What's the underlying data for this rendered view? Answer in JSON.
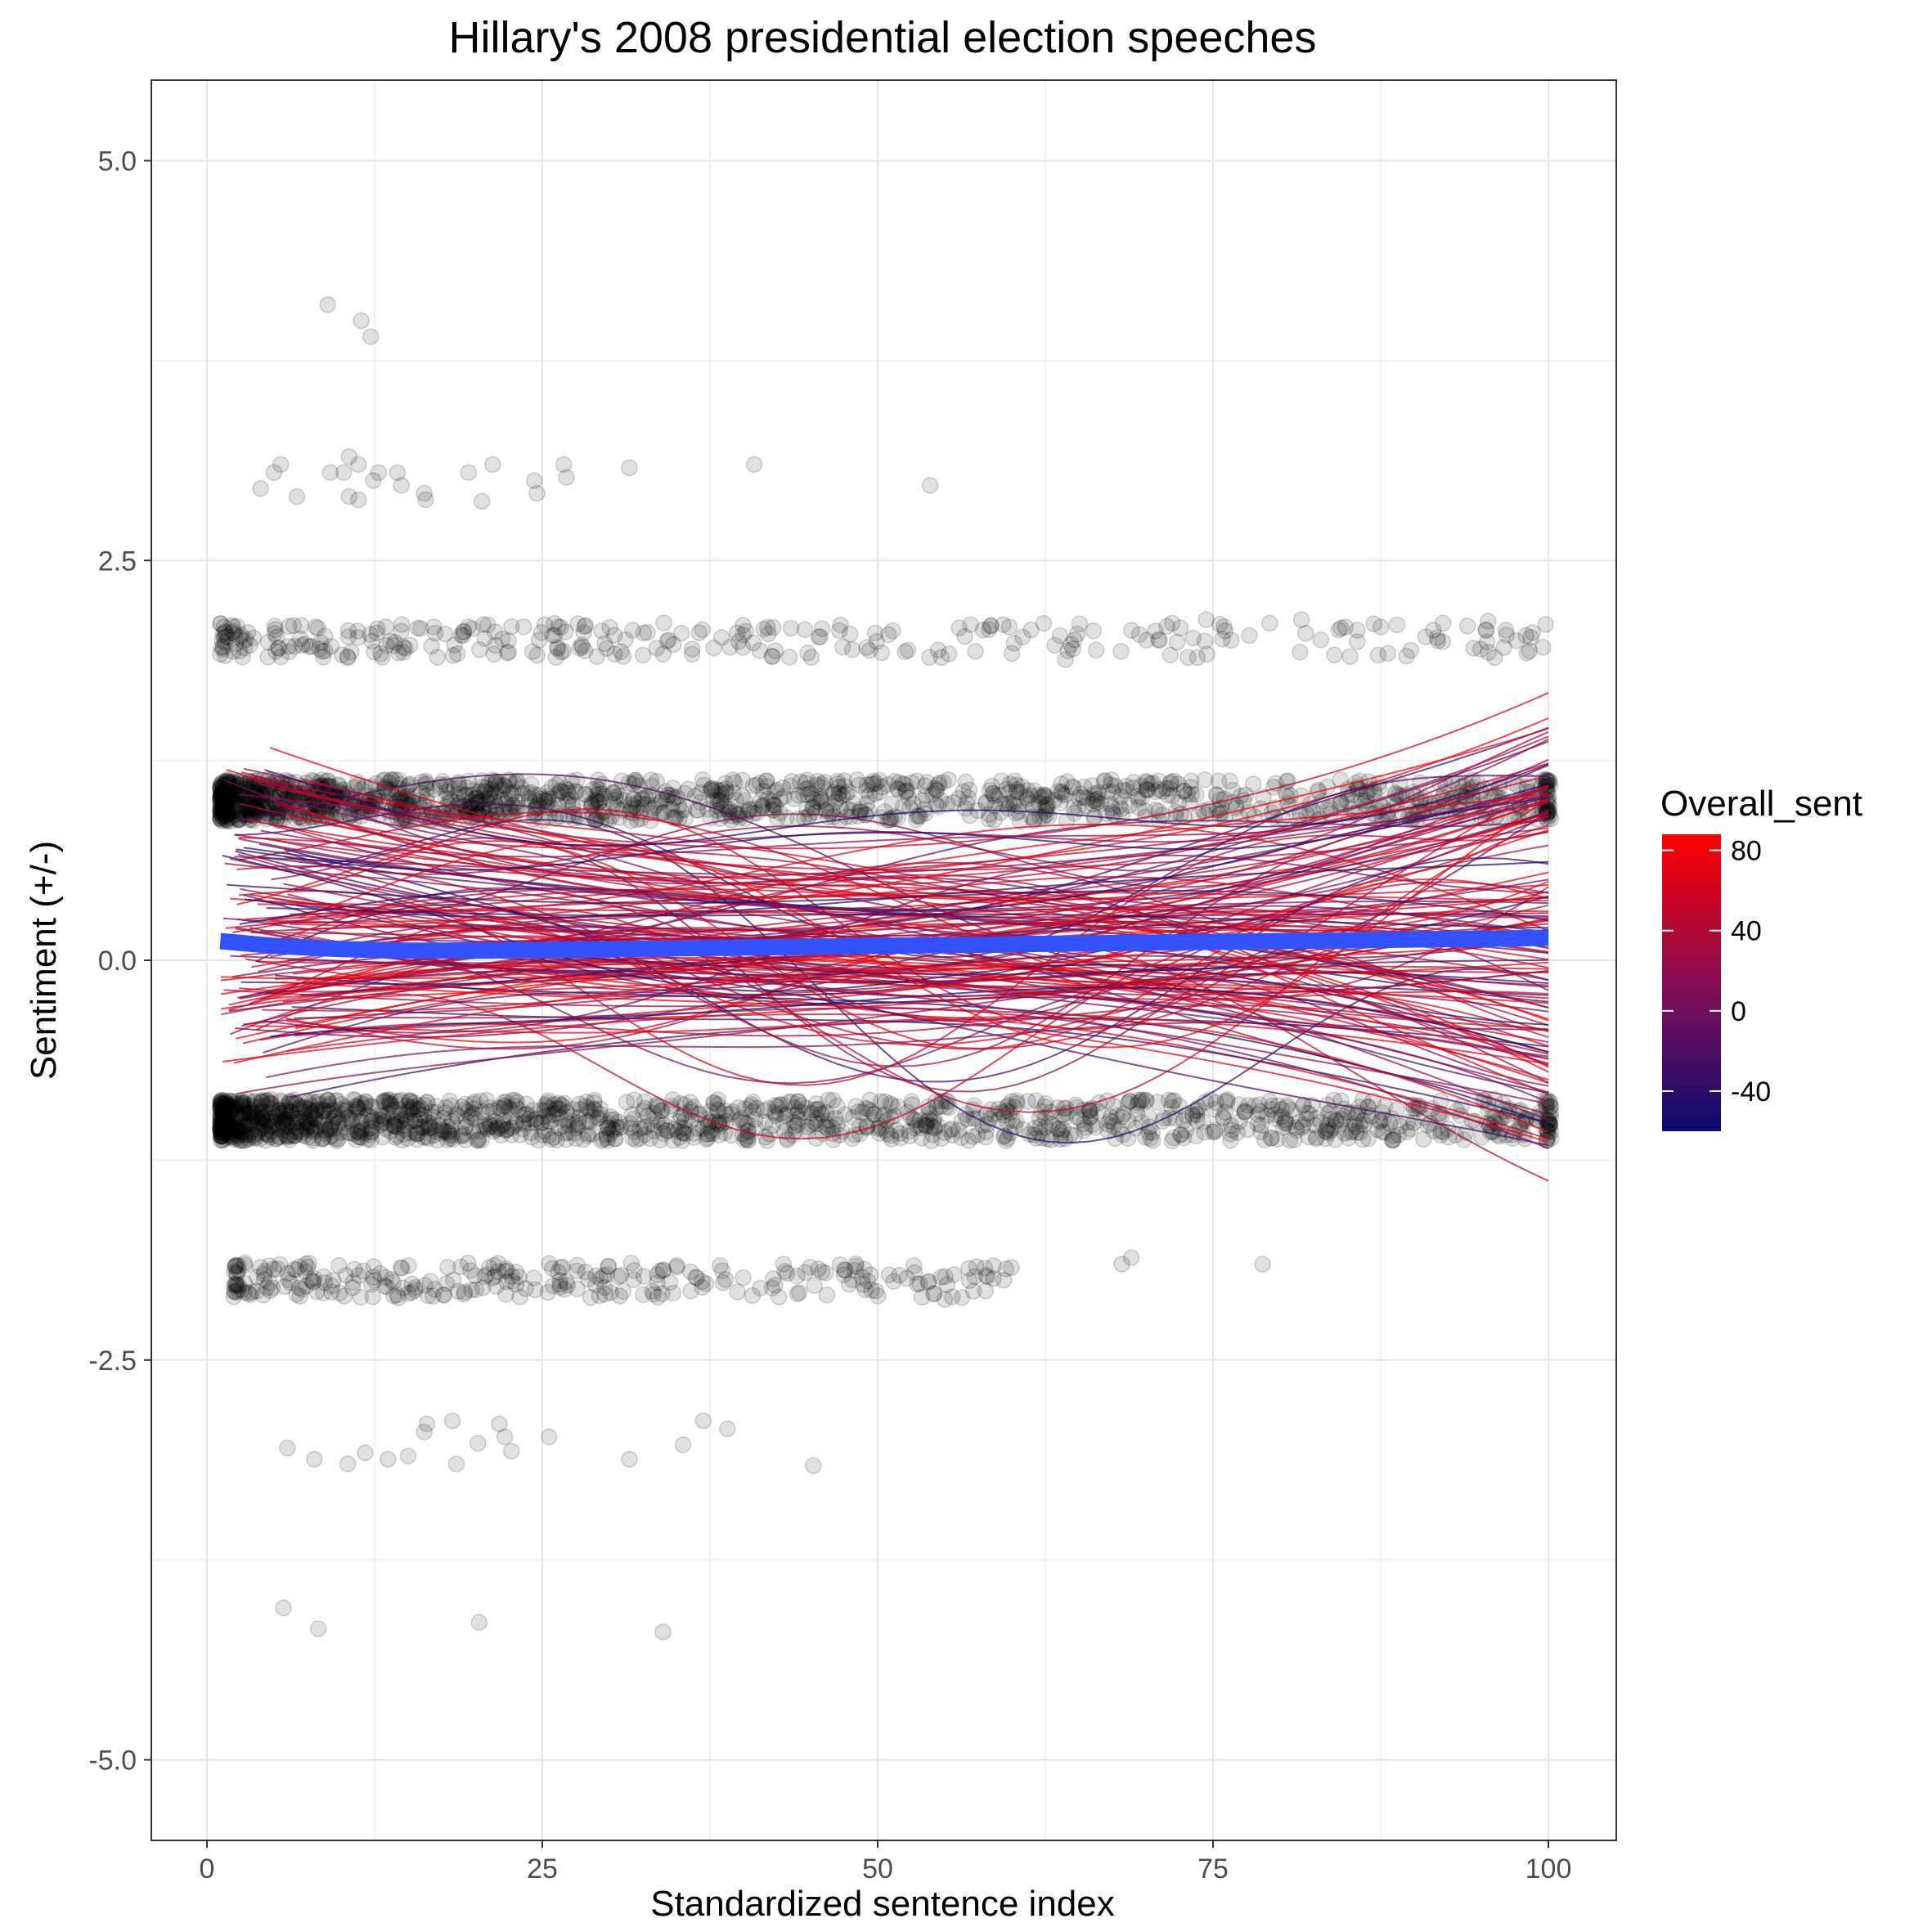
{
  "chart_data": {
    "type": "scatter",
    "title": "Hillary's 2008 presidential election speeches",
    "xlabel": "Standardized sentence index",
    "ylabel": "Sentiment (+/-)",
    "xlim": [
      -4,
      105
    ],
    "ylim": [
      -5.5,
      5.5
    ],
    "x_ticks": [
      0,
      25,
      50,
      75,
      100
    ],
    "x_tick_labels": [
      "0",
      "25",
      "50",
      "75",
      "100"
    ],
    "y_ticks": [
      -5.0,
      -2.5,
      0.0,
      2.5,
      5.0
    ],
    "y_tick_labels": [
      "-5.0",
      "-2.5",
      "0.0",
      "2.5",
      "5.0"
    ],
    "grid": true,
    "legend": {
      "title": "Overall_sent",
      "placement": "right",
      "range": [
        -60,
        88
      ],
      "ticks": [
        80,
        40,
        0,
        -40
      ],
      "tick_labels": [
        "80",
        "40",
        "0",
        "-40"
      ],
      "low_color": "#0a0a6e",
      "mid_color": "#7a0f5a",
      "high_color": "#ff0000"
    },
    "point_color": "#000000",
    "point_alpha": 0.12,
    "trend_color": "#3352ff",
    "trend_line": {
      "x": [
        1,
        5,
        10,
        15,
        20,
        30,
        40,
        50,
        60,
        70,
        80,
        90,
        100
      ],
      "y": [
        0.12,
        0.09,
        0.07,
        0.06,
        0.06,
        0.07,
        0.08,
        0.09,
        0.1,
        0.11,
        0.12,
        0.13,
        0.14
      ]
    },
    "sentiment_bands": [
      {
        "level": 1,
        "x_range": [
          1,
          100
        ],
        "density": "very high"
      },
      {
        "level": -1,
        "x_range": [
          1,
          100
        ],
        "density": "very high"
      },
      {
        "level": 2,
        "x_range": [
          1,
          100
        ],
        "density": "medium"
      },
      {
        "level": -2,
        "x_range": [
          2,
          60
        ],
        "density": "medium"
      }
    ],
    "sparse_points": [
      {
        "x": 9,
        "y": 4.1
      },
      {
        "x": 11.5,
        "y": 4.0
      },
      {
        "x": 12.2,
        "y": 3.9
      },
      {
        "x": 4,
        "y": 2.95
      },
      {
        "x": 5,
        "y": 3.05
      },
      {
        "x": 5.5,
        "y": 3.1
      },
      {
        "x": 6.7,
        "y": 2.9
      },
      {
        "x": 9.2,
        "y": 3.05
      },
      {
        "x": 10.2,
        "y": 3.05
      },
      {
        "x": 10.6,
        "y": 3.15
      },
      {
        "x": 11.3,
        "y": 3.1
      },
      {
        "x": 12.4,
        "y": 3.0
      },
      {
        "x": 12.8,
        "y": 3.05
      },
      {
        "x": 14.2,
        "y": 3.05
      },
      {
        "x": 14.5,
        "y": 2.97
      },
      {
        "x": 16.2,
        "y": 2.92
      },
      {
        "x": 16.3,
        "y": 2.88
      },
      {
        "x": 11.3,
        "y": 2.88
      },
      {
        "x": 10.6,
        "y": 2.9
      },
      {
        "x": 19.5,
        "y": 3.05
      },
      {
        "x": 20.5,
        "y": 2.87
      },
      {
        "x": 21.3,
        "y": 3.1
      },
      {
        "x": 24.4,
        "y": 3.0
      },
      {
        "x": 24.6,
        "y": 2.92
      },
      {
        "x": 26.6,
        "y": 3.1
      },
      {
        "x": 26.8,
        "y": 3.02
      },
      {
        "x": 31.5,
        "y": 3.08
      },
      {
        "x": 40.8,
        "y": 3.1
      },
      {
        "x": 53.9,
        "y": 2.97
      },
      {
        "x": 6.0,
        "y": -3.05
      },
      {
        "x": 8.0,
        "y": -3.12
      },
      {
        "x": 10.5,
        "y": -3.15
      },
      {
        "x": 11.8,
        "y": -3.08
      },
      {
        "x": 13.5,
        "y": -3.12
      },
      {
        "x": 15.0,
        "y": -3.1
      },
      {
        "x": 16.2,
        "y": -2.95
      },
      {
        "x": 16.4,
        "y": -2.9
      },
      {
        "x": 18.3,
        "y": -2.88
      },
      {
        "x": 18.6,
        "y": -3.15
      },
      {
        "x": 20.2,
        "y": -3.02
      },
      {
        "x": 21.8,
        "y": -2.9
      },
      {
        "x": 22.2,
        "y": -2.98
      },
      {
        "x": 22.7,
        "y": -3.07
      },
      {
        "x": 25.5,
        "y": -2.98
      },
      {
        "x": 31.5,
        "y": -3.12
      },
      {
        "x": 35.5,
        "y": -3.03
      },
      {
        "x": 37.0,
        "y": -2.88
      },
      {
        "x": 38.8,
        "y": -2.93
      },
      {
        "x": 45.2,
        "y": -3.16
      },
      {
        "x": 5.7,
        "y": -4.05
      },
      {
        "x": 8.3,
        "y": -4.18
      },
      {
        "x": 20.3,
        "y": -4.14
      },
      {
        "x": 34.0,
        "y": -4.2
      },
      {
        "x": 59.4,
        "y": -2.0
      },
      {
        "x": 68.2,
        "y": -1.9
      },
      {
        "x": 68.9,
        "y": -1.86
      },
      {
        "x": 78.7,
        "y": -1.9
      },
      {
        "x": 55.0,
        "y": -2.12
      },
      {
        "x": 63.2,
        "y": 1.97
      },
      {
        "x": 63.6,
        "y": 2.03
      },
      {
        "x": 64.0,
        "y": 1.88
      },
      {
        "x": 71.0,
        "y": 2.0
      },
      {
        "x": 74.5,
        "y": 2.13
      },
      {
        "x": 81.6,
        "y": 2.13
      },
      {
        "x": 95.5,
        "y": 2.12
      },
      {
        "x": 99.8,
        "y": 2.1
      }
    ]
  }
}
